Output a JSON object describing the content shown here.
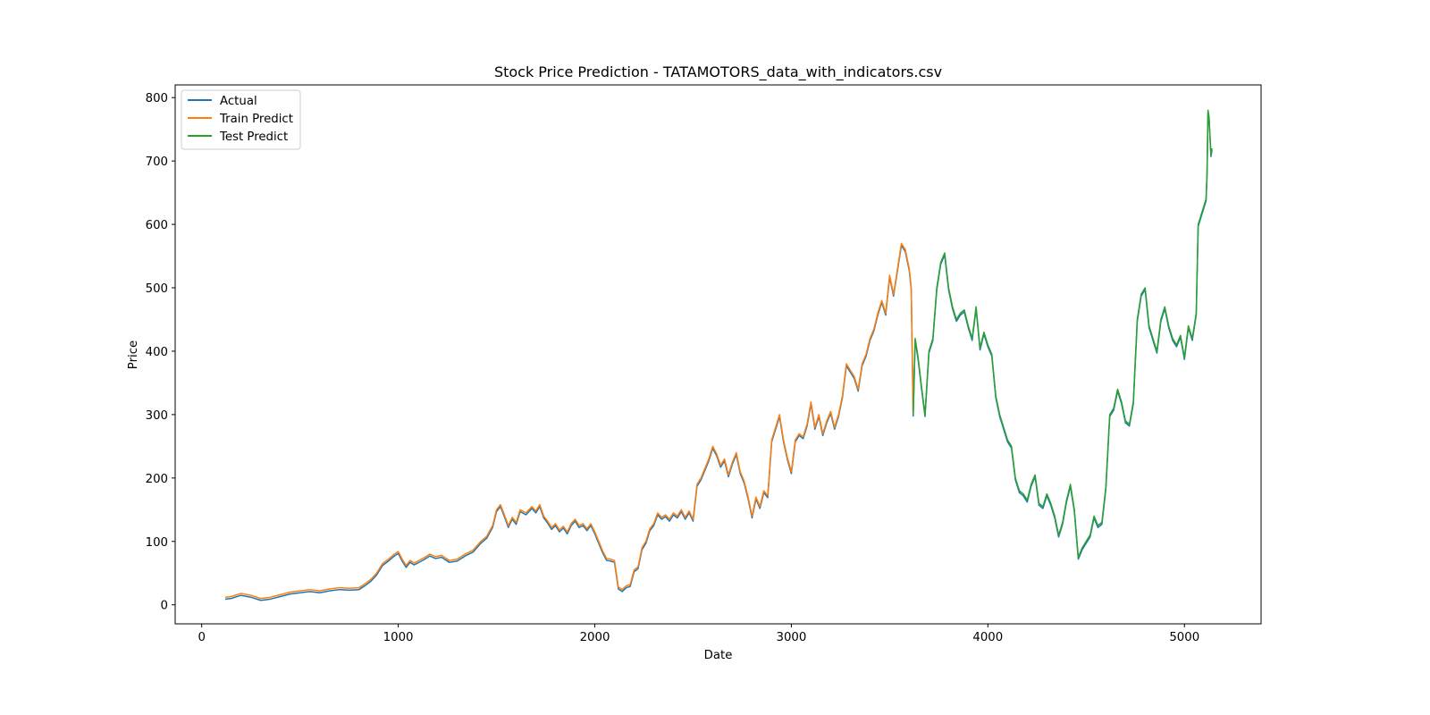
{
  "chart_data": {
    "type": "line",
    "title": "Stock Price Prediction - TATAMOTORS_data_with_indicators.csv",
    "xlabel": "Date",
    "ylabel": "Price",
    "xlim": [
      -135,
      5390
    ],
    "ylim": [
      -30,
      820
    ],
    "xticks": [
      0,
      1000,
      2000,
      3000,
      4000,
      5000
    ],
    "yticks": [
      0,
      100,
      200,
      300,
      400,
      500,
      600,
      700,
      800
    ],
    "grid": false,
    "legend_position": "upper-left",
    "legend": [
      "Actual",
      "Train Predict",
      "Test Predict"
    ],
    "series_colors": {
      "Actual": "#1f77b4",
      "Train Predict": "#ff7f0e",
      "Test Predict": "#2ca02c"
    },
    "series": [
      {
        "name": "Train Predict",
        "x": [
          120,
          150,
          200,
          250,
          300,
          350,
          400,
          450,
          500,
          550,
          600,
          650,
          700,
          750,
          800,
          830,
          860,
          890,
          920,
          950,
          980,
          1000,
          1020,
          1040,
          1060,
          1080,
          1100,
          1130,
          1160,
          1190,
          1220,
          1260,
          1300,
          1340,
          1380,
          1420,
          1450,
          1480,
          1500,
          1520,
          1540,
          1560,
          1580,
          1600,
          1620,
          1650,
          1680,
          1700,
          1720,
          1740,
          1760,
          1780,
          1800,
          1820,
          1840,
          1860,
          1880,
          1900,
          1920,
          1940,
          1960,
          1980,
          2000,
          2020,
          2040,
          2060,
          2080,
          2100,
          2120,
          2140,
          2160,
          2180,
          2200,
          2220,
          2240,
          2260,
          2280,
          2300,
          2320,
          2340,
          2360,
          2380,
          2400,
          2420,
          2440,
          2460,
          2480,
          2500,
          2520,
          2540,
          2560,
          2580,
          2600,
          2620,
          2640,
          2660,
          2680,
          2700,
          2720,
          2740,
          2760,
          2780,
          2800,
          2820,
          2840,
          2860,
          2880,
          2900,
          2920,
          2940,
          2960,
          2980,
          3000,
          3020,
          3040,
          3060,
          3080,
          3100,
          3120,
          3140,
          3160,
          3180,
          3200,
          3220,
          3240,
          3260,
          3280,
          3300,
          3320,
          3340,
          3360,
          3380,
          3400,
          3420,
          3440,
          3460,
          3480,
          3500,
          3520,
          3540,
          3560,
          3580,
          3600,
          3610,
          3620
        ],
        "y": [
          12,
          13,
          18,
          15,
          10,
          12,
          16,
          20,
          22,
          24,
          22,
          25,
          27,
          26,
          27,
          33,
          40,
          50,
          65,
          72,
          80,
          84,
          72,
          62,
          70,
          66,
          69,
          74,
          80,
          76,
          78,
          70,
          72,
          80,
          86,
          100,
          108,
          125,
          150,
          158,
          142,
          125,
          138,
          130,
          150,
          145,
          155,
          148,
          158,
          140,
          132,
          122,
          128,
          118,
          124,
          115,
          128,
          135,
          125,
          128,
          120,
          128,
          115,
          100,
          85,
          73,
          72,
          70,
          28,
          24,
          30,
          32,
          55,
          60,
          90,
          100,
          120,
          128,
          145,
          138,
          142,
          135,
          145,
          140,
          150,
          138,
          148,
          135,
          190,
          200,
          215,
          230,
          250,
          238,
          220,
          230,
          205,
          225,
          240,
          210,
          195,
          170,
          140,
          170,
          155,
          180,
          172,
          260,
          280,
          300,
          260,
          232,
          210,
          260,
          270,
          265,
          285,
          320,
          280,
          300,
          270,
          290,
          305,
          280,
          300,
          330,
          380,
          370,
          360,
          340,
          380,
          395,
          420,
          435,
          460,
          480,
          460,
          520,
          490,
          530,
          570,
          560,
          530,
          500,
          300
        ]
      },
      {
        "name": "Test Predict",
        "x": [
          3620,
          3630,
          3645,
          3660,
          3680,
          3700,
          3720,
          3740,
          3760,
          3780,
          3800,
          3820,
          3840,
          3860,
          3880,
          3900,
          3920,
          3940,
          3960,
          3980,
          4000,
          4020,
          4040,
          4060,
          4080,
          4100,
          4120,
          4140,
          4160,
          4180,
          4200,
          4220,
          4240,
          4260,
          4280,
          4300,
          4320,
          4340,
          4360,
          4380,
          4400,
          4420,
          4440,
          4460,
          4480,
          4500,
          4520,
          4540,
          4560,
          4580,
          4600,
          4620,
          4640,
          4660,
          4680,
          4700,
          4720,
          4740,
          4760,
          4780,
          4800,
          4820,
          4840,
          4860,
          4880,
          4900,
          4920,
          4940,
          4960,
          4980,
          5000,
          5020,
          5040,
          5060,
          5070,
          5080,
          5090,
          5100,
          5110,
          5115,
          5120,
          5125,
          5130,
          5135,
          5140
        ],
        "y": [
          300,
          420,
          390,
          350,
          300,
          400,
          420,
          500,
          540,
          555,
          500,
          470,
          450,
          460,
          465,
          440,
          420,
          470,
          405,
          430,
          410,
          395,
          330,
          300,
          280,
          260,
          250,
          200,
          180,
          175,
          165,
          190,
          205,
          160,
          155,
          175,
          160,
          140,
          110,
          130,
          165,
          190,
          150,
          75,
          90,
          100,
          110,
          140,
          125,
          130,
          185,
          300,
          310,
          340,
          320,
          290,
          285,
          320,
          450,
          490,
          500,
          440,
          420,
          400,
          450,
          470,
          440,
          420,
          410,
          425,
          390,
          440,
          420,
          460,
          600,
          610,
          620,
          630,
          640,
          680,
          780,
          770,
          740,
          710,
          720
        ]
      }
    ]
  }
}
